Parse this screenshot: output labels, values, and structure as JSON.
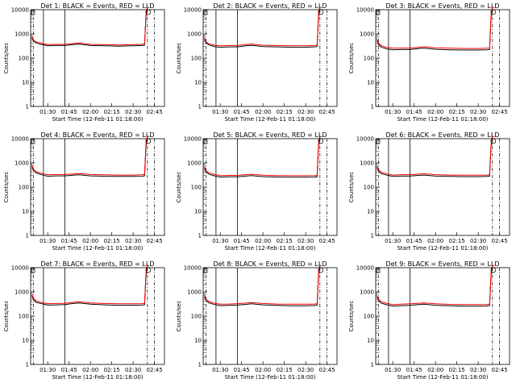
{
  "figure": {
    "background": "#ffffff",
    "ink_color": "#000000",
    "events_color": "#000000",
    "lld_color": "#ff0000"
  },
  "chart_data": [
    {
      "type": "line",
      "title": "Det 1: BLACK = Events, RED = LLD",
      "ylabel": "Counts/sec",
      "xlabel": "Start Time (12-Feb-11 01:18:00)",
      "x_ticks": [
        "01:30",
        "01:45",
        "02:00",
        "02:15",
        "02:30",
        "02:45"
      ],
      "y_ticks": [
        "1",
        "10",
        "100",
        "1000",
        "10000"
      ],
      "yscale": "log",
      "ylim": [
        1,
        10000
      ],
      "x": [
        "01:19",
        "01:20",
        "01:22",
        "01:26",
        "01:30",
        "01:36",
        "01:42",
        "01:48",
        "01:52",
        "02:00",
        "02:10",
        "02:20",
        "02:30",
        "02:36",
        "02:38",
        "02:39",
        "02:40"
      ],
      "series": [
        {
          "name": "Events",
          "color": "#000000",
          "values": [
            700,
            500,
            420,
            360,
            320,
            330,
            330,
            360,
            380,
            330,
            320,
            310,
            320,
            330,
            340,
            5000,
            12000
          ]
        },
        {
          "name": "LLD",
          "color": "#ff0000",
          "values": [
            780,
            560,
            460,
            400,
            360,
            370,
            370,
            400,
            420,
            370,
            360,
            350,
            360,
            370,
            380,
            6000,
            14000
          ]
        }
      ]
    },
    {
      "type": "line",
      "title": "Det 2: BLACK = Events, RED = LLD",
      "ylabel": "Counts/sec",
      "xlabel": "Start Time (12-Feb-11 01:18:00)",
      "x_ticks": [
        "01:30",
        "01:45",
        "02:00",
        "02:15",
        "02:30",
        "02:45"
      ],
      "y_ticks": [
        "1",
        "10",
        "100",
        "1000",
        "10000"
      ],
      "yscale": "log",
      "ylim": [
        1,
        10000
      ],
      "x": [
        "01:19",
        "01:20",
        "01:22",
        "01:26",
        "01:30",
        "01:36",
        "01:42",
        "01:48",
        "01:52",
        "02:00",
        "02:10",
        "02:20",
        "02:30",
        "02:36",
        "02:38",
        "02:39",
        "02:40"
      ],
      "series": [
        {
          "name": "Events",
          "color": "#000000",
          "values": [
            600,
            420,
            350,
            300,
            280,
            290,
            290,
            320,
            340,
            300,
            290,
            280,
            280,
            290,
            300,
            5000,
            12000
          ]
        },
        {
          "name": "LLD",
          "color": "#ff0000",
          "values": [
            680,
            470,
            390,
            340,
            320,
            330,
            330,
            360,
            380,
            340,
            330,
            320,
            320,
            330,
            340,
            6000,
            14000
          ]
        }
      ]
    },
    {
      "type": "line",
      "title": "Det 3: BLACK = Events, RED = LLD",
      "ylabel": "Counts/sec",
      "xlabel": "Start Time (12-Feb-11 01:18:00)",
      "x_ticks": [
        "01:30",
        "01:45",
        "02:00",
        "02:15",
        "02:30",
        "02:45"
      ],
      "y_ticks": [
        "1",
        "10",
        "100",
        "1000",
        "10000"
      ],
      "yscale": "log",
      "ylim": [
        1,
        10000
      ],
      "x": [
        "01:19",
        "01:20",
        "01:22",
        "01:26",
        "01:30",
        "01:36",
        "01:42",
        "01:48",
        "01:52",
        "02:00",
        "02:10",
        "02:20",
        "02:30",
        "02:36",
        "02:38",
        "02:39",
        "02:40"
      ],
      "series": [
        {
          "name": "Events",
          "color": "#000000",
          "values": [
            520,
            360,
            280,
            240,
            220,
            225,
            225,
            245,
            260,
            230,
            220,
            215,
            215,
            220,
            225,
            4500,
            12000
          ]
        },
        {
          "name": "LLD",
          "color": "#ff0000",
          "values": [
            590,
            410,
            320,
            275,
            255,
            260,
            260,
            280,
            295,
            265,
            255,
            250,
            250,
            255,
            260,
            5500,
            14000
          ]
        }
      ]
    },
    {
      "type": "line",
      "title": "Det 4: BLACK = Events, RED = LLD",
      "ylabel": "Counts/sec",
      "xlabel": "Start Time (12-Feb-11 01:18:00)",
      "x_ticks": [
        "01:30",
        "01:45",
        "02:00",
        "02:15",
        "02:30",
        "02:45"
      ],
      "y_ticks": [
        "1",
        "10",
        "100",
        "1000",
        "10000"
      ],
      "yscale": "log",
      "ylim": [
        1,
        10000
      ],
      "x": [
        "01:19",
        "01:20",
        "01:22",
        "01:26",
        "01:30",
        "01:36",
        "01:42",
        "01:48",
        "01:52",
        "02:00",
        "02:10",
        "02:20",
        "02:30",
        "02:36",
        "02:38",
        "02:39",
        "02:40"
      ],
      "series": [
        {
          "name": "Events",
          "color": "#000000",
          "values": [
            700,
            480,
            380,
            320,
            280,
            290,
            290,
            310,
            320,
            290,
            280,
            275,
            275,
            280,
            290,
            4500,
            12000
          ]
        },
        {
          "name": "LLD",
          "color": "#ff0000",
          "values": [
            800,
            540,
            430,
            360,
            320,
            330,
            330,
            350,
            360,
            330,
            320,
            315,
            315,
            320,
            330,
            5500,
            14000
          ]
        }
      ]
    },
    {
      "type": "line",
      "title": "Det 5: BLACK = Events, RED = LLD",
      "ylabel": "Counts/sec",
      "xlabel": "Start Time (12-Feb-11 01:18:00)",
      "x_ticks": [
        "01:30",
        "01:45",
        "02:00",
        "02:15",
        "02:30",
        "02:45"
      ],
      "y_ticks": [
        "1",
        "10",
        "100",
        "1000",
        "10000"
      ],
      "yscale": "log",
      "ylim": [
        1,
        10000
      ],
      "x": [
        "01:19",
        "01:20",
        "01:22",
        "01:26",
        "01:30",
        "01:36",
        "01:42",
        "01:48",
        "01:52",
        "02:00",
        "02:10",
        "02:20",
        "02:30",
        "02:36",
        "02:38",
        "02:39",
        "02:40"
      ],
      "series": [
        {
          "name": "Events",
          "color": "#000000",
          "values": [
            600,
            420,
            340,
            290,
            260,
            265,
            265,
            285,
            300,
            270,
            260,
            255,
            255,
            260,
            265,
            4500,
            12000
          ]
        },
        {
          "name": "LLD",
          "color": "#ff0000",
          "values": [
            690,
            480,
            390,
            330,
            300,
            305,
            305,
            325,
            340,
            310,
            300,
            295,
            295,
            300,
            305,
            5500,
            14000
          ]
        }
      ]
    },
    {
      "type": "line",
      "title": "Det 6: BLACK = Events, RED = LLD",
      "ylabel": "Counts/sec",
      "xlabel": "Start Time (12-Feb-11 01:18:00)",
      "x_ticks": [
        "01:30",
        "01:45",
        "02:00",
        "02:15",
        "02:30",
        "02:45"
      ],
      "y_ticks": [
        "1",
        "10",
        "100",
        "1000",
        "10000"
      ],
      "yscale": "log",
      "ylim": [
        1,
        10000
      ],
      "x": [
        "01:19",
        "01:20",
        "01:22",
        "01:26",
        "01:30",
        "01:36",
        "01:42",
        "01:48",
        "01:52",
        "02:00",
        "02:10",
        "02:20",
        "02:30",
        "02:36",
        "02:38",
        "02:39",
        "02:40"
      ],
      "series": [
        {
          "name": "Events",
          "color": "#000000",
          "values": [
            650,
            450,
            360,
            310,
            275,
            285,
            285,
            305,
            315,
            285,
            275,
            270,
            270,
            275,
            285,
            4500,
            12000
          ]
        },
        {
          "name": "LLD",
          "color": "#ff0000",
          "values": [
            740,
            510,
            410,
            350,
            315,
            325,
            325,
            345,
            355,
            325,
            315,
            310,
            310,
            315,
            325,
            5500,
            14000
          ]
        }
      ]
    },
    {
      "type": "line",
      "title": "Det 7: BLACK = Events, RED = LLD",
      "ylabel": "Counts/sec",
      "xlabel": "Start Time (12-Feb-11 01:18:00)",
      "x_ticks": [
        "01:30",
        "01:45",
        "02:00",
        "02:15",
        "02:30",
        "02:45"
      ],
      "y_ticks": [
        "1",
        "10",
        "100",
        "1000",
        "10000"
      ],
      "yscale": "log",
      "ylim": [
        1,
        10000
      ],
      "x": [
        "01:19",
        "01:20",
        "01:22",
        "01:26",
        "01:30",
        "01:36",
        "01:42",
        "01:48",
        "01:52",
        "02:00",
        "02:10",
        "02:20",
        "02:30",
        "02:36",
        "02:38",
        "02:39",
        "02:40"
      ],
      "series": [
        {
          "name": "Events",
          "color": "#000000",
          "values": [
            680,
            470,
            370,
            320,
            285,
            290,
            300,
            330,
            350,
            310,
            290,
            280,
            280,
            285,
            290,
            4500,
            12000
          ]
        },
        {
          "name": "LLD",
          "color": "#ff0000",
          "values": [
            780,
            530,
            420,
            360,
            325,
            330,
            340,
            370,
            390,
            350,
            330,
            320,
            320,
            325,
            330,
            5500,
            14000
          ]
        }
      ]
    },
    {
      "type": "line",
      "title": "Det 8: BLACK = Events, RED = LLD",
      "ylabel": "Counts/sec",
      "xlabel": "Start Time (12-Feb-11 01:18:00)",
      "x_ticks": [
        "01:30",
        "01:45",
        "02:00",
        "02:15",
        "02:30",
        "02:45"
      ],
      "y_ticks": [
        "1",
        "10",
        "100",
        "1000",
        "10000"
      ],
      "yscale": "log",
      "ylim": [
        1,
        10000
      ],
      "x": [
        "01:19",
        "01:20",
        "01:22",
        "01:26",
        "01:30",
        "01:36",
        "01:42",
        "01:48",
        "01:52",
        "02:00",
        "02:10",
        "02:20",
        "02:30",
        "02:36",
        "02:38",
        "02:39",
        "02:40"
      ],
      "series": [
        {
          "name": "Events",
          "color": "#000000",
          "values": [
            640,
            440,
            350,
            300,
            270,
            275,
            285,
            305,
            320,
            290,
            275,
            268,
            268,
            272,
            280,
            4500,
            12000
          ]
        },
        {
          "name": "LLD",
          "color": "#ff0000",
          "values": [
            730,
            500,
            400,
            340,
            310,
            315,
            325,
            345,
            360,
            330,
            315,
            308,
            308,
            312,
            320,
            5500,
            14000
          ]
        }
      ]
    },
    {
      "type": "line",
      "title": "Det 9: BLACK = Events, RED = LLD",
      "ylabel": "Counts/sec",
      "xlabel": "Start Time (12-Feb-11 01:18:00)",
      "x_ticks": [
        "01:30",
        "01:45",
        "02:00",
        "02:15",
        "02:30",
        "02:45"
      ],
      "y_ticks": [
        "1",
        "10",
        "100",
        "1000",
        "10000"
      ],
      "yscale": "log",
      "ylim": [
        1,
        10000
      ],
      "x": [
        "01:19",
        "01:20",
        "01:22",
        "01:26",
        "01:30",
        "01:36",
        "01:42",
        "01:48",
        "01:52",
        "02:00",
        "02:10",
        "02:20",
        "02:30",
        "02:36",
        "02:38",
        "02:39",
        "02:40"
      ],
      "series": [
        {
          "name": "Events",
          "color": "#000000",
          "values": [
            620,
            430,
            340,
            290,
            260,
            270,
            280,
            300,
            310,
            280,
            265,
            258,
            258,
            262,
            270,
            4500,
            12000
          ]
        },
        {
          "name": "LLD",
          "color": "#ff0000",
          "values": [
            710,
            490,
            390,
            330,
            300,
            310,
            320,
            340,
            350,
            320,
            305,
            298,
            298,
            302,
            310,
            5500,
            14000
          ]
        }
      ]
    }
  ]
}
